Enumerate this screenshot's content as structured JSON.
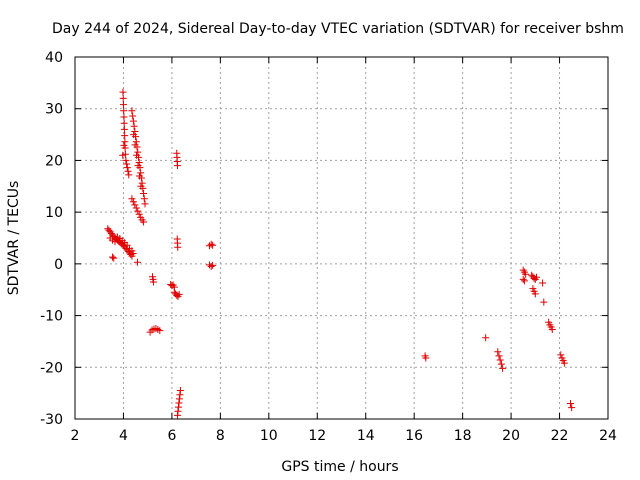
{
  "chart_data": {
    "type": "scatter",
    "title": "Day 244 of 2024, Sidereal Day-to-day VTEC variation (SDTVAR) for receiver bshm",
    "xlabel": "GPS time / hours",
    "ylabel": "SDTVAR / TECUs",
    "xlim": [
      2,
      24
    ],
    "ylim": [
      -30,
      40
    ],
    "xticks": [
      2,
      4,
      6,
      8,
      10,
      12,
      14,
      16,
      18,
      20,
      22,
      24
    ],
    "yticks": [
      -30,
      -20,
      -10,
      0,
      10,
      20,
      30,
      40
    ],
    "grid": true,
    "marker": "plus",
    "color": "#e00000",
    "series": [
      {
        "name": "SDTVAR",
        "points": [
          [
            3.35,
            6.8
          ],
          [
            3.4,
            6.5
          ],
          [
            3.45,
            6.2
          ],
          [
            3.5,
            5.9
          ],
          [
            3.55,
            5.6
          ],
          [
            3.6,
            5.3
          ],
          [
            3.65,
            5.0
          ],
          [
            3.7,
            4.8
          ],
          [
            3.75,
            4.6
          ],
          [
            3.8,
            4.4
          ],
          [
            3.85,
            4.2
          ],
          [
            3.9,
            4.0
          ],
          [
            3.95,
            3.8
          ],
          [
            4.0,
            3.6
          ],
          [
            4.05,
            3.3
          ],
          [
            4.1,
            3.0
          ],
          [
            4.15,
            2.7
          ],
          [
            4.2,
            2.4
          ],
          [
            4.25,
            2.1
          ],
          [
            4.3,
            1.8
          ],
          [
            4.35,
            1.5
          ],
          [
            3.45,
            5.0
          ],
          [
            3.55,
            4.6
          ],
          [
            3.65,
            4.3
          ],
          [
            3.75,
            5.2
          ],
          [
            3.85,
            4.9
          ],
          [
            3.95,
            4.5
          ],
          [
            4.05,
            4.1
          ],
          [
            4.15,
            3.6
          ],
          [
            4.25,
            3.0
          ],
          [
            4.35,
            2.5
          ],
          [
            4.4,
            2.0
          ],
          [
            3.55,
            1.3
          ],
          [
            3.6,
            1.1
          ],
          [
            3.98,
            33.2
          ],
          [
            3.99,
            32.0
          ],
          [
            4.0,
            30.8
          ],
          [
            4.01,
            29.6
          ],
          [
            4.02,
            28.4
          ],
          [
            4.03,
            27.2
          ],
          [
            4.04,
            26.0
          ],
          [
            4.05,
            24.8
          ],
          [
            4.06,
            23.6
          ],
          [
            4.07,
            22.4
          ],
          [
            4.08,
            21.2
          ],
          [
            4.02,
            22.9
          ],
          [
            3.97,
            21.0
          ],
          [
            4.1,
            20.0
          ],
          [
            4.13,
            19.3
          ],
          [
            4.16,
            18.6
          ],
          [
            4.19,
            17.9
          ],
          [
            4.22,
            17.2
          ],
          [
            4.35,
            29.6
          ],
          [
            4.38,
            28.6
          ],
          [
            4.41,
            27.6
          ],
          [
            4.44,
            26.6
          ],
          [
            4.47,
            25.6
          ],
          [
            4.5,
            24.6
          ],
          [
            4.53,
            23.6
          ],
          [
            4.56,
            22.6
          ],
          [
            4.59,
            21.6
          ],
          [
            4.62,
            20.6
          ],
          [
            4.65,
            19.6
          ],
          [
            4.68,
            18.6
          ],
          [
            4.71,
            17.6
          ],
          [
            4.74,
            16.6
          ],
          [
            4.77,
            15.6
          ],
          [
            4.8,
            14.6
          ],
          [
            4.83,
            13.6
          ],
          [
            4.86,
            12.6
          ],
          [
            4.89,
            11.6
          ],
          [
            4.42,
            25.0
          ],
          [
            4.48,
            23.0
          ],
          [
            4.54,
            21.0
          ],
          [
            4.6,
            19.0
          ],
          [
            4.66,
            17.0
          ],
          [
            4.72,
            15.0
          ],
          [
            4.35,
            12.6
          ],
          [
            4.41,
            12.0
          ],
          [
            4.47,
            11.4
          ],
          [
            4.53,
            10.8
          ],
          [
            4.59,
            10.2
          ],
          [
            4.65,
            9.6
          ],
          [
            4.71,
            9.0
          ],
          [
            4.77,
            8.5
          ],
          [
            4.83,
            8.1
          ],
          [
            4.58,
            0.3
          ],
          [
            5.2,
            -2.5
          ],
          [
            5.22,
            -3.0
          ],
          [
            5.24,
            -3.5
          ],
          [
            5.1,
            -13.2
          ],
          [
            5.18,
            -12.8
          ],
          [
            5.26,
            -12.6
          ],
          [
            5.34,
            -12.5
          ],
          [
            5.42,
            -12.7
          ],
          [
            5.5,
            -12.9
          ],
          [
            5.95,
            -4.0
          ],
          [
            6.0,
            -4.2
          ],
          [
            6.05,
            -4.1
          ],
          [
            6.1,
            -4.5
          ],
          [
            6.1,
            -5.5
          ],
          [
            6.15,
            -5.8
          ],
          [
            6.2,
            -6.1
          ],
          [
            6.25,
            -6.3
          ],
          [
            6.3,
            -5.9
          ],
          [
            6.2,
            21.4
          ],
          [
            6.21,
            20.6
          ],
          [
            6.22,
            19.8
          ],
          [
            6.23,
            19.0
          ],
          [
            6.22,
            4.8
          ],
          [
            6.23,
            4.0
          ],
          [
            6.24,
            3.2
          ],
          [
            6.35,
            -24.5
          ],
          [
            6.33,
            -25.3
          ],
          [
            6.31,
            -26.1
          ],
          [
            6.29,
            -26.9
          ],
          [
            6.27,
            -27.7
          ],
          [
            6.25,
            -28.5
          ],
          [
            6.23,
            -29.3
          ],
          [
            7.55,
            3.5
          ],
          [
            7.62,
            3.8
          ],
          [
            7.68,
            3.6
          ],
          [
            7.55,
            -0.2
          ],
          [
            7.62,
            -0.5
          ],
          [
            7.68,
            -0.3
          ],
          [
            16.45,
            -17.8
          ],
          [
            16.48,
            -18.2
          ],
          [
            18.95,
            -14.3
          ],
          [
            19.45,
            -17.0
          ],
          [
            19.5,
            -17.8
          ],
          [
            19.55,
            -18.6
          ],
          [
            19.6,
            -19.4
          ],
          [
            19.65,
            -20.2
          ],
          [
            20.5,
            -1.2
          ],
          [
            20.55,
            -1.6
          ],
          [
            20.6,
            -2.0
          ],
          [
            20.5,
            -3.0
          ],
          [
            20.55,
            -3.3
          ],
          [
            20.85,
            -2.2
          ],
          [
            20.9,
            -2.5
          ],
          [
            20.95,
            -2.8
          ],
          [
            21.0,
            -3.0
          ],
          [
            21.05,
            -2.6
          ],
          [
            20.9,
            -4.8
          ],
          [
            20.95,
            -5.3
          ],
          [
            21.0,
            -5.8
          ],
          [
            21.3,
            -3.7
          ],
          [
            21.35,
            -7.4
          ],
          [
            21.55,
            -11.3
          ],
          [
            21.6,
            -11.8
          ],
          [
            21.65,
            -12.2
          ],
          [
            21.7,
            -12.7
          ],
          [
            22.05,
            -17.6
          ],
          [
            22.1,
            -18.2
          ],
          [
            22.15,
            -18.7
          ],
          [
            22.2,
            -19.2
          ],
          [
            22.45,
            -27.0
          ],
          [
            22.5,
            -27.8
          ]
        ]
      }
    ]
  }
}
